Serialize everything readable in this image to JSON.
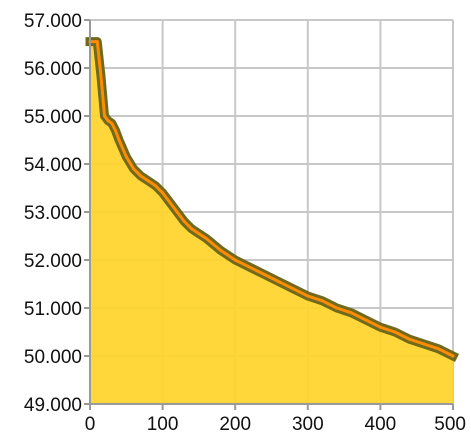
{
  "chart_data": {
    "type": "area",
    "title": "",
    "xlabel": "",
    "ylabel": "",
    "xlim": [
      0,
      500
    ],
    "ylim": [
      49,
      57
    ],
    "x_ticks": [
      0,
      100,
      200,
      300,
      400,
      500
    ],
    "x_tick_labels": [
      "0",
      "100",
      "200",
      "300",
      "400",
      "500"
    ],
    "y_ticks": [
      49,
      50,
      51,
      52,
      53,
      54,
      55,
      56,
      57
    ],
    "y_tick_labels": [
      "49.000",
      "50.000",
      "51.000",
      "52.000",
      "53.000",
      "54.000",
      "55.000",
      "56.000",
      "57.000"
    ],
    "grid": true,
    "legend": "none",
    "colors": {
      "area_fill": "#ffd42a",
      "line_outer": "#6f6a1e",
      "line_inner": "#ff8c00",
      "grid": "#c8c8c8",
      "axis": "#9a9a9a"
    },
    "series": [
      {
        "x": [
          0,
          10,
          15,
          20,
          25,
          30,
          35,
          40,
          50,
          60,
          70,
          80,
          90,
          100,
          110,
          120,
          130,
          140,
          150,
          160,
          180,
          200,
          220,
          240,
          260,
          280,
          300,
          320,
          340,
          360,
          380,
          400,
          420,
          440,
          460,
          480,
          500
        ],
        "values": [
          56.55,
          56.55,
          55.85,
          55.0,
          54.9,
          54.85,
          54.7,
          54.5,
          54.15,
          53.9,
          53.75,
          53.65,
          53.55,
          53.4,
          53.2,
          53.0,
          52.8,
          52.65,
          52.55,
          52.45,
          52.2,
          52.0,
          51.85,
          51.7,
          51.55,
          51.4,
          51.25,
          51.15,
          51.0,
          50.9,
          50.75,
          50.6,
          50.5,
          50.35,
          50.25,
          50.15,
          50.0
        ]
      }
    ]
  }
}
